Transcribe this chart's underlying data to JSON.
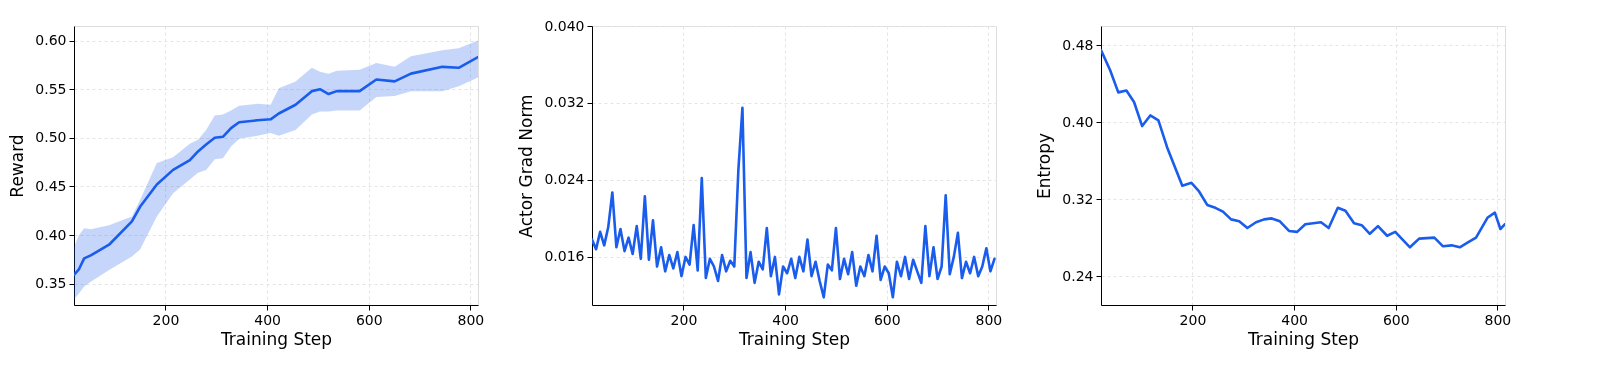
{
  "chart_data": [
    {
      "type": "line",
      "xlabel": "Training Step",
      "ylabel": "Reward",
      "xlim": [
        20,
        815
      ],
      "xticks": [
        200,
        400,
        600,
        800
      ],
      "ylim": [
        0.328,
        0.615
      ],
      "yticks": [
        0.35,
        {
          "value": 0.4,
          "label": "0.40"
        },
        0.45,
        {
          "value": 0.5,
          "label": "0.50"
        },
        0.55,
        {
          "value": 0.6,
          "label": "0.60"
        }
      ],
      "grid": true,
      "series": [
        {
          "color": "#1a5cec",
          "x": [
            20,
            30,
            40,
            53,
            89,
            134,
            150,
            183,
            215,
            248,
            264,
            280,
            297,
            313,
            329,
            345,
            381,
            407,
            423,
            456,
            488,
            504,
            521,
            537,
            582,
            615,
            651,
            683,
            745,
            777,
            815
          ],
          "values": [
            0.359,
            0.365,
            0.376,
            0.379,
            0.39,
            0.414,
            0.429,
            0.452,
            0.467,
            0.477,
            0.486,
            0.493,
            0.5,
            0.501,
            0.51,
            0.516,
            0.518,
            0.519,
            0.525,
            0.534,
            0.548,
            0.55,
            0.545,
            0.548,
            0.548,
            0.56,
            0.558,
            0.566,
            0.573,
            0.572,
            0.583
          ],
          "lower": [
            0.334,
            0.34,
            0.347,
            0.352,
            0.364,
            0.378,
            0.385,
            0.419,
            0.443,
            0.457,
            0.464,
            0.467,
            0.478,
            0.479,
            0.491,
            0.499,
            0.502,
            0.505,
            0.502,
            0.508,
            0.524,
            0.527,
            0.527,
            0.528,
            0.528,
            0.542,
            0.543,
            0.548,
            0.548,
            0.553,
            0.562
          ],
          "upper": [
            0.388,
            0.4,
            0.407,
            0.406,
            0.41,
            0.419,
            0.436,
            0.474,
            0.48,
            0.494,
            0.498,
            0.508,
            0.523,
            0.524,
            0.528,
            0.533,
            0.535,
            0.534,
            0.551,
            0.558,
            0.572,
            0.568,
            0.566,
            0.569,
            0.57,
            0.577,
            0.573,
            0.584,
            0.59,
            0.592,
            0.6
          ]
        }
      ]
    },
    {
      "type": "line",
      "xlabel": "Training Step",
      "ylabel": "Actor Grad Norm",
      "xlim": [
        20,
        815
      ],
      "xticks": [
        200,
        400,
        600,
        800
      ],
      "ylim": [
        0.011,
        0.04
      ],
      "yticks": [
        0.016,
        0.024,
        0.032,
        {
          "value": 0.04,
          "label": "0.040"
        }
      ],
      "grid": true,
      "series": [
        {
          "color": "#1a5cec",
          "x": [
            20,
            28,
            36,
            44,
            52,
            60,
            68,
            76,
            84,
            92,
            100,
            108,
            116,
            124,
            132,
            140,
            148,
            156,
            164,
            172,
            180,
            188,
            196,
            204,
            212,
            220,
            228,
            236,
            244,
            252,
            260,
            268,
            276,
            284,
            292,
            300,
            308,
            316,
            324,
            332,
            340,
            348,
            356,
            364,
            372,
            380,
            388,
            396,
            404,
            412,
            420,
            428,
            436,
            444,
            452,
            460,
            468,
            476,
            484,
            492,
            500,
            508,
            516,
            524,
            532,
            540,
            548,
            556,
            564,
            572,
            580,
            588,
            596,
            604,
            612,
            620,
            628,
            636,
            644,
            652,
            660,
            668,
            676,
            684,
            692,
            700,
            708,
            716,
            724,
            732,
            740,
            748,
            756,
            764,
            772,
            780,
            788,
            796,
            804,
            812
          ],
          "values": [
            0.0178,
            0.0168,
            0.0186,
            0.0172,
            0.0191,
            0.0227,
            0.017,
            0.0189,
            0.0166,
            0.018,
            0.0163,
            0.0192,
            0.0158,
            0.0223,
            0.0157,
            0.0198,
            0.015,
            0.017,
            0.0145,
            0.0162,
            0.0148,
            0.0165,
            0.014,
            0.016,
            0.0152,
            0.0193,
            0.0146,
            0.0242,
            0.0138,
            0.0158,
            0.015,
            0.0135,
            0.0162,
            0.0145,
            0.0156,
            0.015,
            0.025,
            0.0315,
            0.0138,
            0.0165,
            0.0133,
            0.0155,
            0.0147,
            0.019,
            0.014,
            0.016,
            0.0121,
            0.015,
            0.0143,
            0.0158,
            0.0138,
            0.016,
            0.0145,
            0.0178,
            0.014,
            0.0155,
            0.0135,
            0.0118,
            0.0152,
            0.0146,
            0.019,
            0.0137,
            0.0158,
            0.0142,
            0.0165,
            0.013,
            0.015,
            0.014,
            0.0162,
            0.0145,
            0.0182,
            0.0136,
            0.015,
            0.0143,
            0.0118,
            0.0155,
            0.014,
            0.016,
            0.0137,
            0.0157,
            0.0145,
            0.0133,
            0.0192,
            0.014,
            0.017,
            0.0137,
            0.015,
            0.0224,
            0.0142,
            0.016,
            0.0185,
            0.0138,
            0.0155,
            0.0143,
            0.016,
            0.014,
            0.015,
            0.0169,
            0.0145,
            0.0158
          ]
        }
      ]
    },
    {
      "type": "line",
      "xlabel": "Training Step",
      "ylabel": "Entropy",
      "xlim": [
        20,
        815
      ],
      "xticks": [
        200,
        400,
        600,
        800
      ],
      "ylim": [
        0.21,
        0.5
      ],
      "yticks": [
        0.24,
        0.32,
        {
          "value": 0.4,
          "label": "0.40"
        },
        0.48
      ],
      "grid": true,
      "series": [
        {
          "color": "#1a5cec",
          "x": [
            20,
            38,
            54,
            70,
            85,
            101,
            117,
            133,
            150,
            180,
            198,
            213,
            229,
            245,
            260,
            276,
            292,
            308,
            325,
            341,
            356,
            372,
            390,
            406,
            422,
            453,
            468,
            486,
            501,
            518,
            533,
            549,
            565,
            583,
            599,
            628,
            646,
            676,
            693,
            710,
            726,
            742,
            758,
            781,
            795,
            806,
            815
          ],
          "values": [
            0.475,
            0.454,
            0.431,
            0.433,
            0.421,
            0.396,
            0.407,
            0.402,
            0.374,
            0.334,
            0.337,
            0.328,
            0.314,
            0.311,
            0.307,
            0.299,
            0.297,
            0.29,
            0.296,
            0.299,
            0.3,
            0.297,
            0.287,
            0.286,
            0.294,
            0.296,
            0.29,
            0.311,
            0.308,
            0.295,
            0.293,
            0.284,
            0.292,
            0.282,
            0.286,
            0.27,
            0.279,
            0.28,
            0.271,
            0.272,
            0.27,
            0.275,
            0.28,
            0.301,
            0.306,
            0.289,
            0.294
          ]
        }
      ]
    }
  ]
}
